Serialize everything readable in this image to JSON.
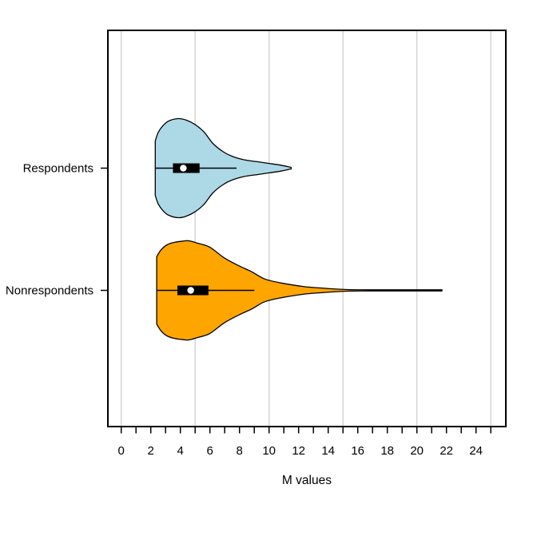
{
  "chart_data": {
    "type": "violin",
    "orientation": "horizontal",
    "title": "",
    "xlabel": "M values",
    "ylabel": "",
    "categories": [
      "Respondents",
      "Nonrespondents"
    ],
    "x_axis": {
      "range": [
        -0.9,
        26.1
      ],
      "minor_ticks": [
        0,
        1,
        2,
        3,
        4,
        5,
        6,
        7,
        8,
        9,
        10,
        11,
        12,
        13,
        14,
        15,
        16,
        17,
        18,
        19,
        20,
        21,
        22,
        23,
        24,
        25
      ],
      "labeled_ticks": [
        {
          "v": 0,
          "label": "0"
        },
        {
          "v": 2,
          "label": "2"
        },
        {
          "v": 4,
          "label": "4"
        },
        {
          "v": 6,
          "label": "6"
        },
        {
          "v": 8,
          "label": "8"
        },
        {
          "v": 10,
          "label": "10"
        },
        {
          "v": 12,
          "label": "12"
        },
        {
          "v": 14,
          "label": "14"
        },
        {
          "v": 16,
          "label": "16"
        },
        {
          "v": 18,
          "label": "18"
        },
        {
          "v": 20,
          "label": "20"
        },
        {
          "v": 22,
          "label": "22"
        },
        {
          "v": 24,
          "label": "24"
        }
      ],
      "gridlines_at": [
        0,
        5,
        10,
        15,
        20,
        25
      ]
    },
    "grid": true,
    "legend": null,
    "series": [
      {
        "name": "Respondents",
        "fill": "#ADD8E6",
        "stats": {
          "min": 2.3,
          "q1": 3.5,
          "median": 4.2,
          "q3": 5.3,
          "whisker_high": 7.8,
          "max": 11.5
        },
        "density_profile": [
          [
            2.3,
            0.55
          ],
          [
            2.5,
            0.72
          ],
          [
            2.8,
            0.85
          ],
          [
            3.2,
            0.95
          ],
          [
            3.85,
            1.0
          ],
          [
            4.4,
            0.97
          ],
          [
            5.0,
            0.88
          ],
          [
            5.6,
            0.73
          ],
          [
            6.2,
            0.5
          ],
          [
            6.9,
            0.33
          ],
          [
            7.5,
            0.24
          ],
          [
            8.3,
            0.17
          ],
          [
            9.2,
            0.13
          ],
          [
            10.0,
            0.095
          ],
          [
            10.8,
            0.06
          ],
          [
            11.5,
            0.014
          ]
        ]
      },
      {
        "name": "Nonrespondents",
        "fill": "#FFA500",
        "stats": {
          "min": 2.4,
          "q1": 3.8,
          "median": 4.7,
          "q3": 5.9,
          "whisker_high": 9.0,
          "max": 21.7
        },
        "density_profile": [
          [
            2.4,
            0.68
          ],
          [
            2.7,
            0.82
          ],
          [
            3.1,
            0.92
          ],
          [
            3.6,
            0.97
          ],
          [
            4.2,
            0.995
          ],
          [
            4.6,
            1.0
          ],
          [
            5.2,
            0.95
          ],
          [
            6.0,
            0.87
          ],
          [
            7.0,
            0.65
          ],
          [
            8.0,
            0.49
          ],
          [
            8.8,
            0.38
          ],
          [
            9.7,
            0.23
          ],
          [
            10.8,
            0.15
          ],
          [
            12.4,
            0.075
          ],
          [
            13.5,
            0.048
          ],
          [
            14.7,
            0.024
          ],
          [
            15.5,
            0.014
          ],
          [
            17.0,
            0.012
          ],
          [
            21.7,
            0.012
          ]
        ]
      }
    ]
  },
  "colors": {
    "background": "#ffffff",
    "frame": "#000000",
    "gridline": "#d4d4d4",
    "tick": "#000000",
    "text": "#000000",
    "violin_outline": "#000000",
    "box_fill": "#000000",
    "whisker": "#000000",
    "median_dot": "#ffffff"
  }
}
